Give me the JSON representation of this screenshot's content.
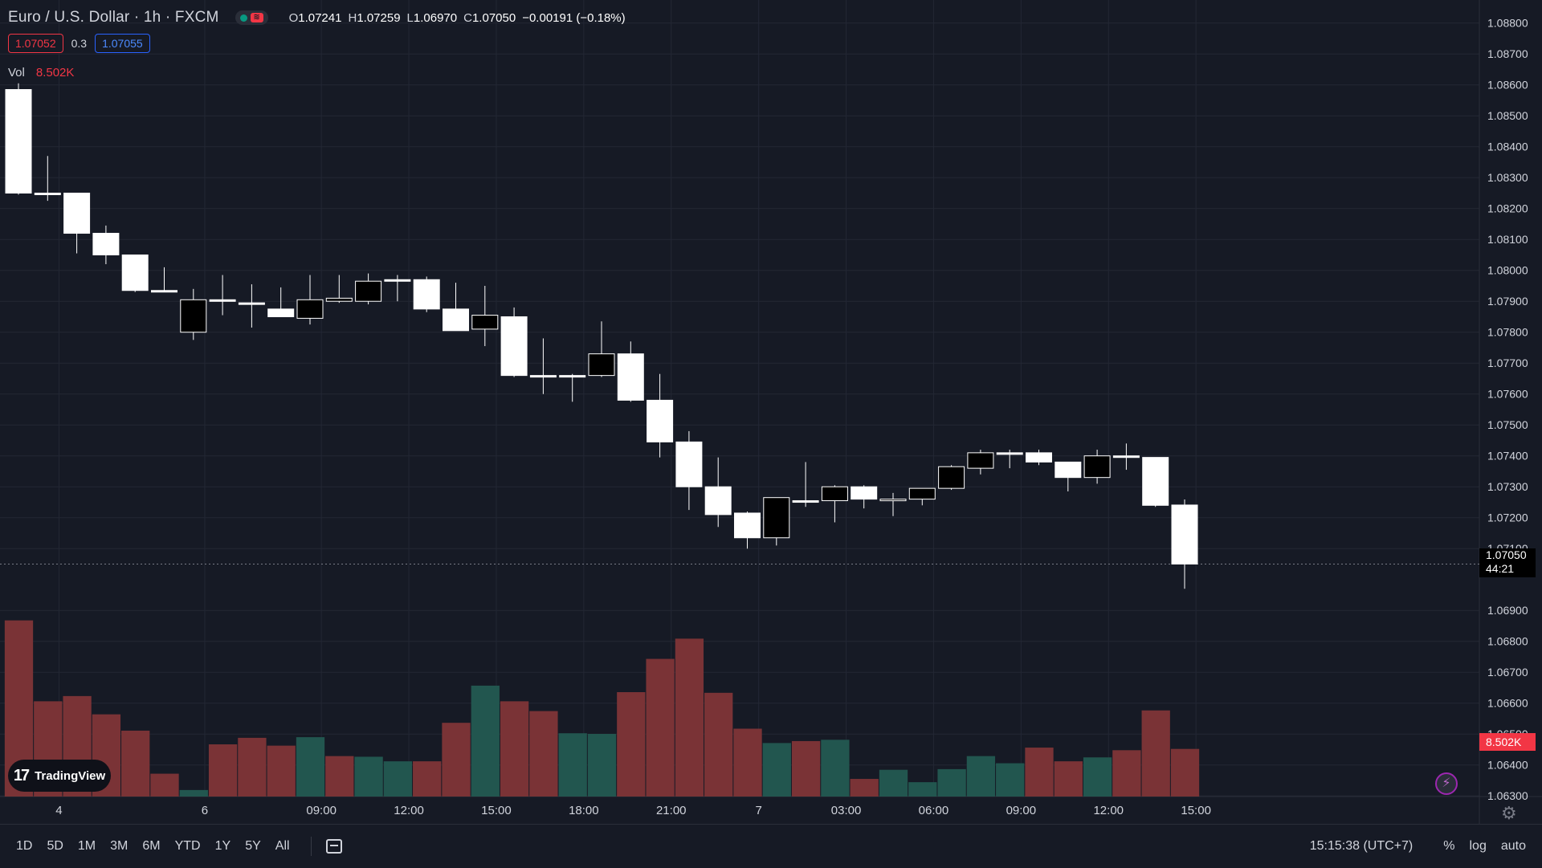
{
  "legend": {
    "symbol": "Euro / U.S. Dollar · 1h · FXCM",
    "ohlc": [
      {
        "k": "O",
        "v": "1.07241"
      },
      {
        "k": "H",
        "v": "1.07259"
      },
      {
        "k": "L",
        "v": "1.06970"
      },
      {
        "k": "C",
        "v": "1.07050"
      }
    ],
    "change": "−0.00191 (−0.18%)"
  },
  "quote": {
    "sell": "1.07052",
    "spread": "0.3",
    "buy": "1.07055"
  },
  "volume_label": {
    "name": "Vol",
    "value": "8.502K"
  },
  "price_axis": {
    "ticks": [
      "1.08800",
      "1.08700",
      "1.08600",
      "1.08500",
      "1.08400",
      "1.08300",
      "1.08200",
      "1.08100",
      "1.08000",
      "1.07900",
      "1.07800",
      "1.07700",
      "1.07600",
      "1.07500",
      "1.07400",
      "1.07300",
      "1.07200",
      "1.07100",
      "1.06900",
      "1.06800",
      "1.06700",
      "1.06600",
      "1.06500",
      "1.06400",
      "1.06300"
    ],
    "last_price": "1.07050",
    "countdown": "44:21",
    "volume_tag": "8.502K"
  },
  "time_axis": {
    "labels": [
      {
        "i": 1,
        "t": "4"
      },
      {
        "i": 6,
        "t": "6"
      },
      {
        "i": 10,
        "t": "09:00"
      },
      {
        "i": 13,
        "t": "12:00"
      },
      {
        "i": 16,
        "t": "15:00"
      },
      {
        "i": 19,
        "t": "18:00"
      },
      {
        "i": 22,
        "t": "21:00"
      },
      {
        "i": 25,
        "t": "7"
      },
      {
        "i": 28,
        "t": "03:00"
      },
      {
        "i": 31,
        "t": "06:00"
      },
      {
        "i": 34,
        "t": "09:00"
      },
      {
        "i": 37,
        "t": "12:00"
      },
      {
        "i": 40,
        "t": "15:00"
      }
    ]
  },
  "bottom_bar": {
    "ranges": [
      "1D",
      "5D",
      "1M",
      "3M",
      "6M",
      "YTD",
      "1Y",
      "5Y",
      "All"
    ],
    "clock": "15:15:38 (UTC+7)",
    "percent": "%",
    "log": "log",
    "auto": "auto"
  },
  "branding": {
    "name": "TradingView"
  },
  "colors": {
    "background": "#161a25",
    "up_body": "#000000",
    "down_body": "#ffffff",
    "vol_up": "#22564f",
    "vol_down": "#7a3336",
    "grid": "#232734"
  },
  "chart_data": {
    "type": "candlestick",
    "ylim": [
      1.0625,
      1.0885
    ],
    "candles": [
      {
        "o": 1.08585,
        "h": 1.08605,
        "l": 1.08245,
        "c": 1.0825
      },
      {
        "o": 1.0825,
        "h": 1.0837,
        "l": 1.08225,
        "c": 1.0825
      },
      {
        "o": 1.0825,
        "h": 1.0825,
        "l": 1.08055,
        "c": 1.0812
      },
      {
        "o": 1.0812,
        "h": 1.08145,
        "l": 1.0802,
        "c": 1.0805
      },
      {
        "o": 1.0805,
        "h": 1.0805,
        "l": 1.0793,
        "c": 1.07935
      },
      {
        "o": 1.07935,
        "h": 1.0801,
        "l": 1.0793,
        "c": 1.0793
      },
      {
        "o": 1.078,
        "h": 1.0794,
        "l": 1.07775,
        "c": 1.07905
      },
      {
        "o": 1.07905,
        "h": 1.07985,
        "l": 1.07855,
        "c": 1.079
      },
      {
        "o": 1.07895,
        "h": 1.07955,
        "l": 1.07815,
        "c": 1.0789
      },
      {
        "o": 1.07875,
        "h": 1.07945,
        "l": 1.0785,
        "c": 1.0785
      },
      {
        "o": 1.07845,
        "h": 1.07985,
        "l": 1.07825,
        "c": 1.07905
      },
      {
        "o": 1.079,
        "h": 1.07985,
        "l": 1.07895,
        "c": 1.0791
      },
      {
        "o": 1.079,
        "h": 1.0799,
        "l": 1.0789,
        "c": 1.07965
      },
      {
        "o": 1.0797,
        "h": 1.07985,
        "l": 1.079,
        "c": 1.07965
      },
      {
        "o": 1.0797,
        "h": 1.0798,
        "l": 1.07865,
        "c": 1.07875
      },
      {
        "o": 1.07875,
        "h": 1.0796,
        "l": 1.07805,
        "c": 1.07805
      },
      {
        "o": 1.0781,
        "h": 1.0795,
        "l": 1.07755,
        "c": 1.07855
      },
      {
        "o": 1.0785,
        "h": 1.0788,
        "l": 1.07655,
        "c": 1.0766
      },
      {
        "o": 1.0766,
        "h": 1.0778,
        "l": 1.076,
        "c": 1.0766
      },
      {
        "o": 1.0766,
        "h": 1.07665,
        "l": 1.07575,
        "c": 1.07655
      },
      {
        "o": 1.0766,
        "h": 1.07835,
        "l": 1.07655,
        "c": 1.0773
      },
      {
        "o": 1.0773,
        "h": 1.0777,
        "l": 1.07575,
        "c": 1.0758
      },
      {
        "o": 1.0758,
        "h": 1.07665,
        "l": 1.07395,
        "c": 1.07445
      },
      {
        "o": 1.07445,
        "h": 1.0748,
        "l": 1.07225,
        "c": 1.073
      },
      {
        "o": 1.073,
        "h": 1.07395,
        "l": 1.0717,
        "c": 1.0721
      },
      {
        "o": 1.07215,
        "h": 1.0722,
        "l": 1.071,
        "c": 1.07135
      },
      {
        "o": 1.07135,
        "h": 1.07265,
        "l": 1.0711,
        "c": 1.07265
      },
      {
        "o": 1.07255,
        "h": 1.0738,
        "l": 1.07235,
        "c": 1.07255
      },
      {
        "o": 1.07255,
        "h": 1.07305,
        "l": 1.07185,
        "c": 1.073
      },
      {
        "o": 1.073,
        "h": 1.07305,
        "l": 1.0723,
        "c": 1.0726
      },
      {
        "o": 1.07255,
        "h": 1.0728,
        "l": 1.07205,
        "c": 1.0726
      },
      {
        "o": 1.0726,
        "h": 1.0729,
        "l": 1.0724,
        "c": 1.07295
      },
      {
        "o": 1.07295,
        "h": 1.0737,
        "l": 1.0729,
        "c": 1.07365
      },
      {
        "o": 1.0736,
        "h": 1.0742,
        "l": 1.0734,
        "c": 1.0741
      },
      {
        "o": 1.0741,
        "h": 1.0742,
        "l": 1.0736,
        "c": 1.0741
      },
      {
        "o": 1.0741,
        "h": 1.0742,
        "l": 1.0737,
        "c": 1.0738
      },
      {
        "o": 1.0738,
        "h": 1.0738,
        "l": 1.07285,
        "c": 1.0733
      },
      {
        "o": 1.0733,
        "h": 1.0742,
        "l": 1.0731,
        "c": 1.074
      },
      {
        "o": 1.074,
        "h": 1.0744,
        "l": 1.07355,
        "c": 1.07395
      },
      {
        "o": 1.07395,
        "h": 1.07395,
        "l": 1.07235,
        "c": 1.0724
      },
      {
        "o": 1.07241,
        "h": 1.07259,
        "l": 1.0697,
        "c": 1.0705
      }
    ],
    "volume": {
      "ylim": [
        0,
        1600
      ],
      "bars": [
        {
          "v": 1350,
          "d": "down"
        },
        {
          "v": 730,
          "d": "down"
        },
        {
          "v": 770,
          "d": "down"
        },
        {
          "v": 630,
          "d": "down"
        },
        {
          "v": 505,
          "d": "down"
        },
        {
          "v": 175,
          "d": "down"
        },
        {
          "v": 50,
          "d": "up"
        },
        {
          "v": 400,
          "d": "down"
        },
        {
          "v": 450,
          "d": "down"
        },
        {
          "v": 390,
          "d": "down"
        },
        {
          "v": 455,
          "d": "up"
        },
        {
          "v": 310,
          "d": "down"
        },
        {
          "v": 305,
          "d": "up"
        },
        {
          "v": 270,
          "d": "up"
        },
        {
          "v": 270,
          "d": "down"
        },
        {
          "v": 565,
          "d": "down"
        },
        {
          "v": 850,
          "d": "up"
        },
        {
          "v": 730,
          "d": "down"
        },
        {
          "v": 655,
          "d": "down"
        },
        {
          "v": 485,
          "d": "up"
        },
        {
          "v": 480,
          "d": "up"
        },
        {
          "v": 800,
          "d": "down"
        },
        {
          "v": 1055,
          "d": "down"
        },
        {
          "v": 1210,
          "d": "down"
        },
        {
          "v": 795,
          "d": "down"
        },
        {
          "v": 520,
          "d": "down"
        },
        {
          "v": 410,
          "d": "up"
        },
        {
          "v": 425,
          "d": "down"
        },
        {
          "v": 435,
          "d": "up"
        },
        {
          "v": 135,
          "d": "down"
        },
        {
          "v": 205,
          "d": "up"
        },
        {
          "v": 110,
          "d": "up"
        },
        {
          "v": 210,
          "d": "up"
        },
        {
          "v": 310,
          "d": "up"
        },
        {
          "v": 255,
          "d": "up"
        },
        {
          "v": 375,
          "d": "down"
        },
        {
          "v": 270,
          "d": "down"
        },
        {
          "v": 300,
          "d": "up"
        },
        {
          "v": 355,
          "d": "down"
        },
        {
          "v": 660,
          "d": "down"
        },
        {
          "v": 365,
          "d": "down"
        }
      ]
    }
  }
}
